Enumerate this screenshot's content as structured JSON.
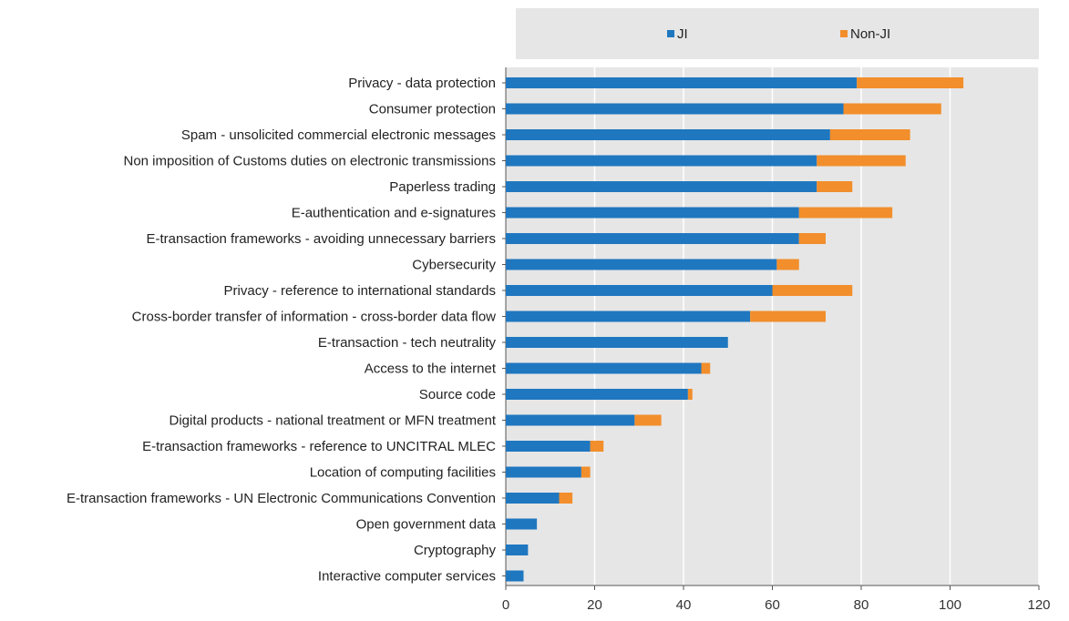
{
  "chart_data": {
    "type": "bar",
    "orientation": "horizontal",
    "stacked": true,
    "title": "",
    "xlabel": "",
    "ylabel": "",
    "xlim": [
      0,
      120
    ],
    "x_ticks": [
      0,
      20,
      40,
      60,
      80,
      100,
      120
    ],
    "grid": "vertical",
    "legend_position": "top",
    "colors": {
      "JI": "#1f77c0",
      "Non-JI": "#f28e2b",
      "plot_background": "#e6e6e6",
      "legend_background": "#e6e6e6",
      "grid": "#ffffff"
    },
    "categories": [
      "Privacy - data protection",
      "Consumer protection",
      "Spam - unsolicited commercial electronic messages",
      "Non imposition of Customs duties on electronic transmissions",
      "Paperless trading",
      "E-authentication and e-signatures",
      "E-transaction frameworks - avoiding unnecessary barriers",
      "Cybersecurity",
      "Privacy - reference to international standards",
      "Cross-border transfer of information - cross-border data flow",
      "E-transaction - tech neutrality",
      "Access to the internet",
      "Source code",
      "Digital products - national treatment or MFN treatment",
      "E-transaction frameworks - reference to UNCITRAL MLEC",
      "Location of computing facilities",
      "E-transaction frameworks - UN Electronic Communications Convention",
      "Open government data",
      "Cryptography",
      "Interactive computer services"
    ],
    "series": [
      {
        "name": "JI",
        "values": [
          79,
          76,
          73,
          70,
          70,
          66,
          66,
          61,
          60,
          55,
          50,
          44,
          41,
          29,
          19,
          17,
          12,
          7,
          5,
          4
        ]
      },
      {
        "name": "Non-JI",
        "values": [
          24,
          22,
          18,
          20,
          8,
          21,
          6,
          5,
          18,
          17,
          0,
          2,
          1,
          6,
          3,
          2,
          3,
          0,
          0,
          0
        ]
      }
    ]
  }
}
